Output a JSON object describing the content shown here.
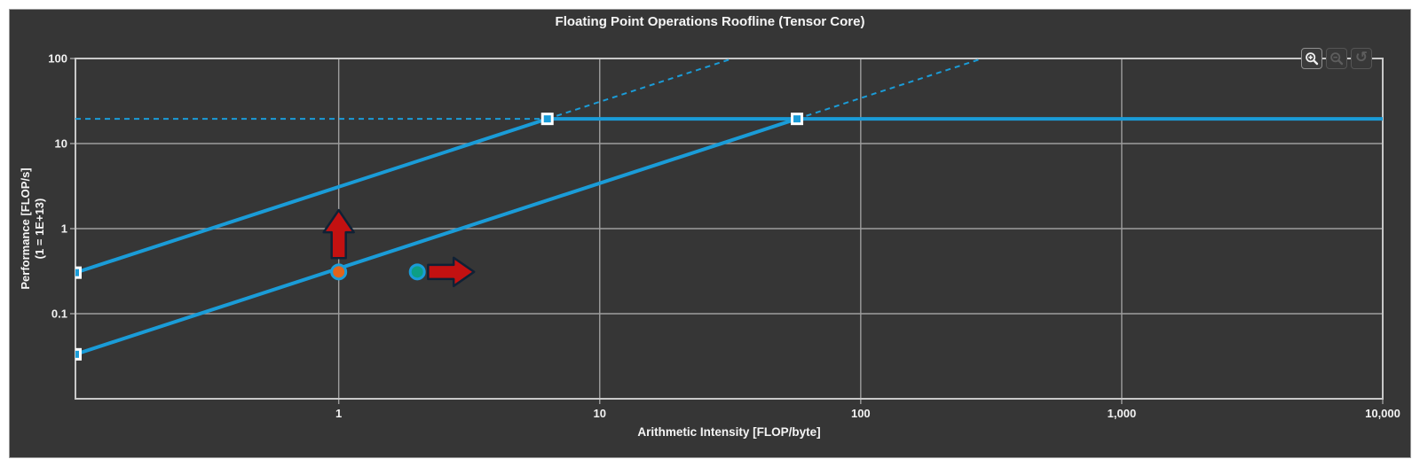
{
  "window": {
    "title": "Floating Point Operations Roofline (Tensor Core)"
  },
  "toolbar": {
    "buttons": [
      {
        "name": "zoom-in-button",
        "icon": "zoom-in-icon",
        "enabled": true
      },
      {
        "name": "zoom-out-button",
        "icon": "zoom-out-icon",
        "enabled": false
      },
      {
        "name": "reset-zoom-button",
        "icon": "reset-zoom-icon",
        "enabled": false
      }
    ]
  },
  "chart_data": {
    "type": "line",
    "subtype": "roofline",
    "title": "Floating Point Operations Roofline (Tensor Core)",
    "xlabel": "Arithmetic Intensity [FLOP/byte]",
    "ylabel_line1": "Performance [FLOP/s]",
    "ylabel_line2": "(1 = 1E+13)",
    "x_scale": "log",
    "y_scale": "log",
    "xlim": [
      0.098,
      10000
    ],
    "ylim": [
      0.01,
      100
    ],
    "grid": true,
    "legend": "none",
    "x_ticks": [
      {
        "value": 1,
        "label": "1"
      },
      {
        "value": 10,
        "label": "10"
      },
      {
        "value": 100,
        "label": "100"
      },
      {
        "value": 1000,
        "label": "1,000"
      },
      {
        "value": 10000,
        "label": "10,000"
      }
    ],
    "y_ticks": [
      {
        "value": 100,
        "label": "100"
      },
      {
        "value": 10,
        "label": "10"
      },
      {
        "value": 1,
        "label": "1"
      },
      {
        "value": 0.1,
        "label": "0.1"
      }
    ],
    "peak_performance": 19.5,
    "memory_rooflines": [
      {
        "name": "upper-memory-roofline",
        "bandwidth_slope": 3.1,
        "ridge_point": {
          "x": 6.3,
          "y": 19.5
        }
      },
      {
        "name": "lower-memory-roofline",
        "bandwidth_slope": 0.34,
        "ridge_point": {
          "x": 57,
          "y": 19.5
        }
      }
    ],
    "achieved_points": [
      {
        "name": "achieved-value-1",
        "x": 1.0,
        "y": 0.31,
        "color": "#e2641c"
      },
      {
        "name": "achieved-value-2",
        "x": 2.0,
        "y": 0.31,
        "color": "#0d9f85"
      }
    ],
    "annotations": [
      {
        "name": "improvement-arrow-up",
        "type": "arrow-up",
        "x": 1.0,
        "y_from": 0.45,
        "y_to": 1.65
      },
      {
        "name": "improvement-arrow-right",
        "type": "arrow-right",
        "y": 0.31,
        "x_from": 2.2,
        "x_to": 3.3
      }
    ],
    "colors": {
      "roofline": "#1a9cd8",
      "marker_fill": "#1a9cd8",
      "marker_border": "#ffffff",
      "point_ring": "#1a9cd8",
      "arrow_fill": "#c31111",
      "arrow_border": "#102135",
      "grid": "#9d9d9d",
      "plot_border": "#c8c8c8",
      "background": "#363636",
      "text": "#f5f5f5"
    }
  }
}
